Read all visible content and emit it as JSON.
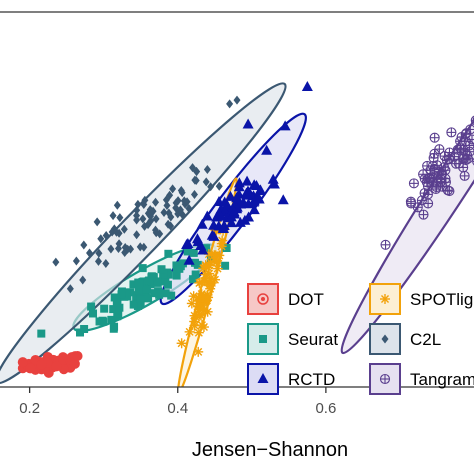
{
  "chart_data": {
    "type": "scatter",
    "xlabel": "Jensen−Shannon",
    "ylabel": "",
    "xlim": [
      0.16,
      0.8
    ],
    "ylim": [
      0.0,
      1.0
    ],
    "x_ticks": [
      {
        "value": 0.2,
        "label": "0.2"
      },
      {
        "value": 0.4,
        "label": "0.4"
      },
      {
        "value": 0.6,
        "label": "0.6"
      }
    ],
    "grid": false,
    "legend_position": "bottom-right, inside",
    "series": [
      {
        "name": "DOT",
        "marker": "circle-dot",
        "color": "#e8413e",
        "fill": "#f6c8c6",
        "center": [
          0.232,
          0.063
        ],
        "spread": [
          0.02,
          0.01
        ],
        "n": 55,
        "ellipse": null
      },
      {
        "name": "Seurat",
        "marker": "square",
        "color": "#1a9988",
        "fill": "#d6ecea",
        "center": [
          0.355,
          0.26
        ],
        "spread": [
          0.04,
          0.05
        ],
        "n": 95,
        "ellipse": {
          "center": [
            0.355,
            0.265
          ],
          "rx": 0.11,
          "ry": 0.045,
          "angle_deg": -30
        }
      },
      {
        "name": "RCTD",
        "marker": "triangle",
        "color": "#0a14a8",
        "fill": "#dcdcf5",
        "center": [
          0.475,
          0.47
        ],
        "spread": [
          0.03,
          0.05
        ],
        "n": 70,
        "ellipse": {
          "center": [
            0.475,
            0.475
          ],
          "rx": 0.16,
          "ry": 0.045,
          "angle_deg": -53
        }
      },
      {
        "name": "SPOTlight",
        "marker": "asterisk",
        "color": "#f2a20b",
        "fill": "#fcefd4",
        "center": [
          0.44,
          0.28
        ],
        "spread": [
          0.012,
          0.07
        ],
        "n": 65,
        "ellipse": {
          "center": [
            0.44,
            0.27
          ],
          "rx": 0.15,
          "ry": 0.015,
          "angle_deg": -75
        }
      },
      {
        "name": "C2L",
        "marker": "diamond",
        "color": "#3b5872",
        "fill": "#dde3ea",
        "center": [
          0.35,
          0.43
        ],
        "spread": [
          0.05,
          0.07
        ],
        "n": 80,
        "ellipse": {
          "center": [
            0.35,
            0.41
          ],
          "rx": 0.28,
          "ry": 0.055,
          "angle_deg": -46
        }
      },
      {
        "name": "Tangram",
        "marker": "circle-plus",
        "color": "#5a3f8e",
        "fill": "#e6e1f0",
        "center": [
          0.76,
          0.57
        ],
        "spread": [
          0.03,
          0.07
        ],
        "n": 75,
        "ellipse": {
          "center": [
            0.775,
            0.555
          ],
          "rx": 0.28,
          "ry": 0.045,
          "angle_deg": -57
        }
      }
    ],
    "outliers": {
      "RCTD": [
        [
          0.575,
          0.8
        ],
        [
          0.52,
          0.63
        ],
        [
          0.545,
          0.695
        ],
        [
          0.495,
          0.7
        ],
        [
          0.51,
          0.5
        ]
      ],
      "C2L": [
        [
          0.47,
          0.755
        ],
        [
          0.48,
          0.765
        ],
        [
          0.42,
          0.585
        ],
        [
          0.44,
          0.58
        ]
      ]
    }
  }
}
